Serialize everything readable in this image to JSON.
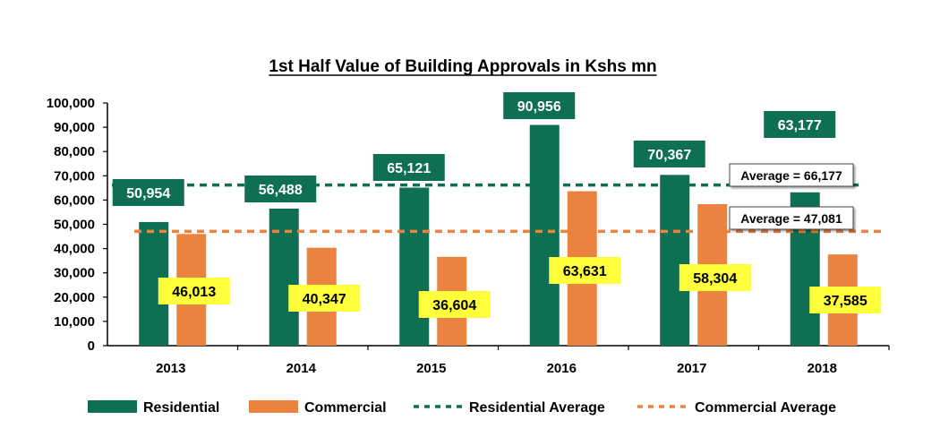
{
  "chart_data": {
    "type": "bar",
    "title": "1st Half Value of Building Approvals in Kshs mn",
    "xlabel": "",
    "ylabel": "",
    "ylim": [
      0,
      100000
    ],
    "yticks": [
      0,
      10000,
      20000,
      30000,
      40000,
      50000,
      60000,
      70000,
      80000,
      90000,
      100000
    ],
    "ytick_labels": [
      "0",
      "10,000",
      "20,000",
      "30,000",
      "40,000",
      "50,000",
      "60,000",
      "70,000",
      "80,000",
      "90,000",
      "100,000"
    ],
    "categories": [
      "2013",
      "2014",
      "2015",
      "2016",
      "2017",
      "2018"
    ],
    "grid": false,
    "legend_position": "bottom",
    "series": [
      {
        "name": "Residential",
        "color": "#0f6f53",
        "label_bg": "#0f6f53",
        "label_color": "#ffffff",
        "values": [
          50954,
          56488,
          65121,
          90956,
          70367,
          63177
        ],
        "labels": [
          "50,954",
          "56,488",
          "65,121",
          "90,956",
          "70,367",
          "63,177"
        ]
      },
      {
        "name": "Commercial",
        "color": "#ec823f",
        "label_bg": "#ffff3c",
        "label_color": "#000000",
        "values": [
          46013,
          40347,
          36604,
          63631,
          58304,
          37585
        ],
        "labels": [
          "46,013",
          "40,347",
          "36,604",
          "63,631",
          "58,304",
          "37,585"
        ]
      }
    ],
    "averages": [
      {
        "name": "Residential Average",
        "value": 66177,
        "label": "Average = 66,177",
        "color": "#0f6f53"
      },
      {
        "name": "Commercial Average",
        "value": 47081,
        "label": "Average = 47,081",
        "color": "#ec823f"
      }
    ]
  }
}
